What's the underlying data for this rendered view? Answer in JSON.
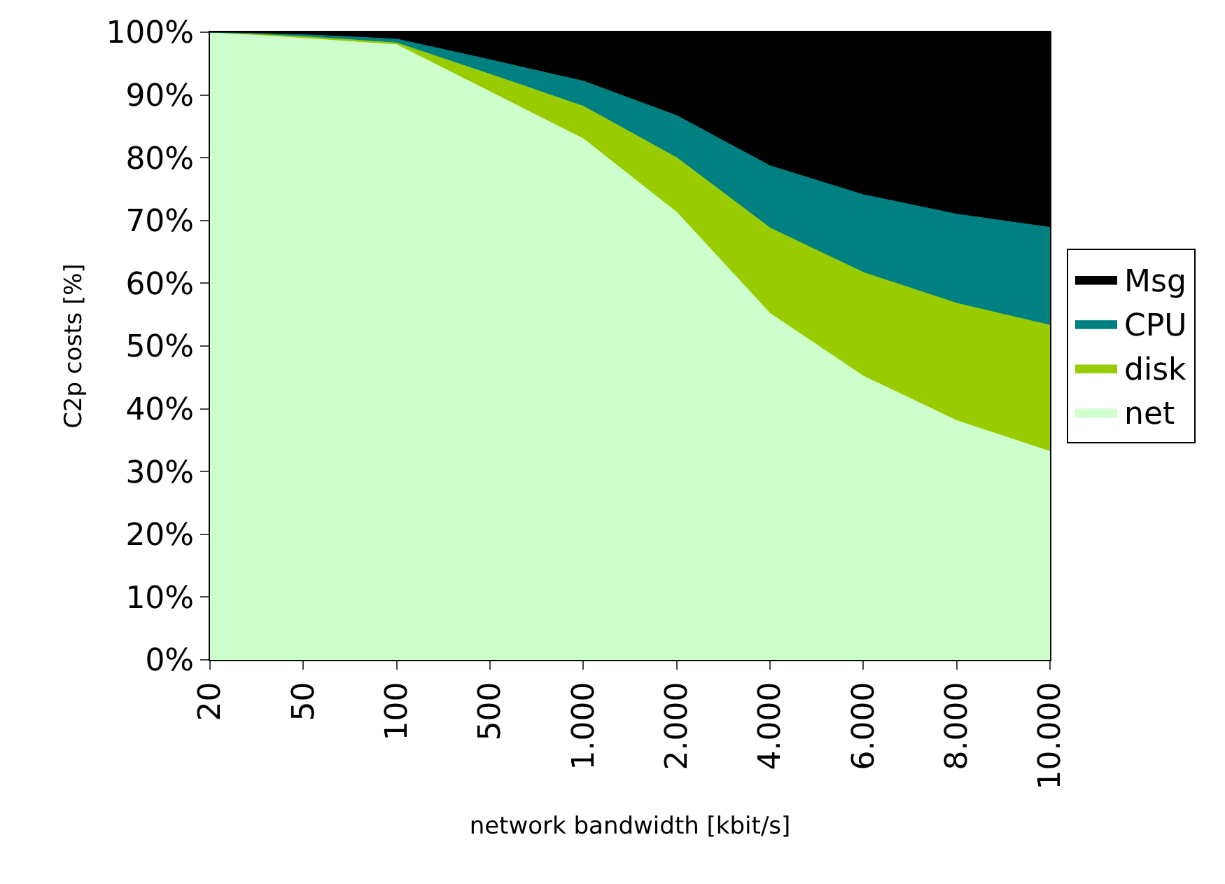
{
  "chart_data": {
    "type": "area",
    "stacked": true,
    "xlabel": "network bandwidth [kbit/s]",
    "ylabel": "C2p costs [%]",
    "categories": [
      "20",
      "50",
      "100",
      "500",
      "1.000",
      "2.000",
      "4.000",
      "6.000",
      "8.000",
      "10.000"
    ],
    "series": [
      {
        "name": "net",
        "color": "#ccffcc",
        "values": [
          100,
          99,
          98,
          90.5,
          83,
          71.3,
          55.2,
          45.2,
          38.1,
          33.2
        ]
      },
      {
        "name": "disk",
        "color": "#99cc00",
        "values": [
          0,
          0.3,
          0.3,
          2.8,
          5.2,
          8.7,
          13.6,
          16.5,
          18.7,
          20.1
        ]
      },
      {
        "name": "CPU",
        "color": "#008080",
        "values": [
          0,
          0.3,
          0.6,
          2.3,
          4,
          6.7,
          9.9,
          12.4,
          14.2,
          15.6
        ]
      },
      {
        "name": "Msg",
        "color": "#000000",
        "values": [
          0,
          0.4,
          1.1,
          4.4,
          7.8,
          13.3,
          21.3,
          25.9,
          29,
          31.1
        ]
      }
    ],
    "ylim": [
      0,
      100
    ],
    "yticks": [
      {
        "value": 0,
        "label": "0%"
      },
      {
        "value": 10,
        "label": "10%"
      },
      {
        "value": 20,
        "label": "20%"
      },
      {
        "value": 30,
        "label": "30%"
      },
      {
        "value": 40,
        "label": "40%"
      },
      {
        "value": 50,
        "label": "50%"
      },
      {
        "value": 60,
        "label": "60%"
      },
      {
        "value": 70,
        "label": "70%"
      },
      {
        "value": 80,
        "label": "80%"
      },
      {
        "value": 90,
        "label": "90%"
      },
      {
        "value": 100,
        "label": "100%"
      }
    ],
    "legend": "right"
  }
}
